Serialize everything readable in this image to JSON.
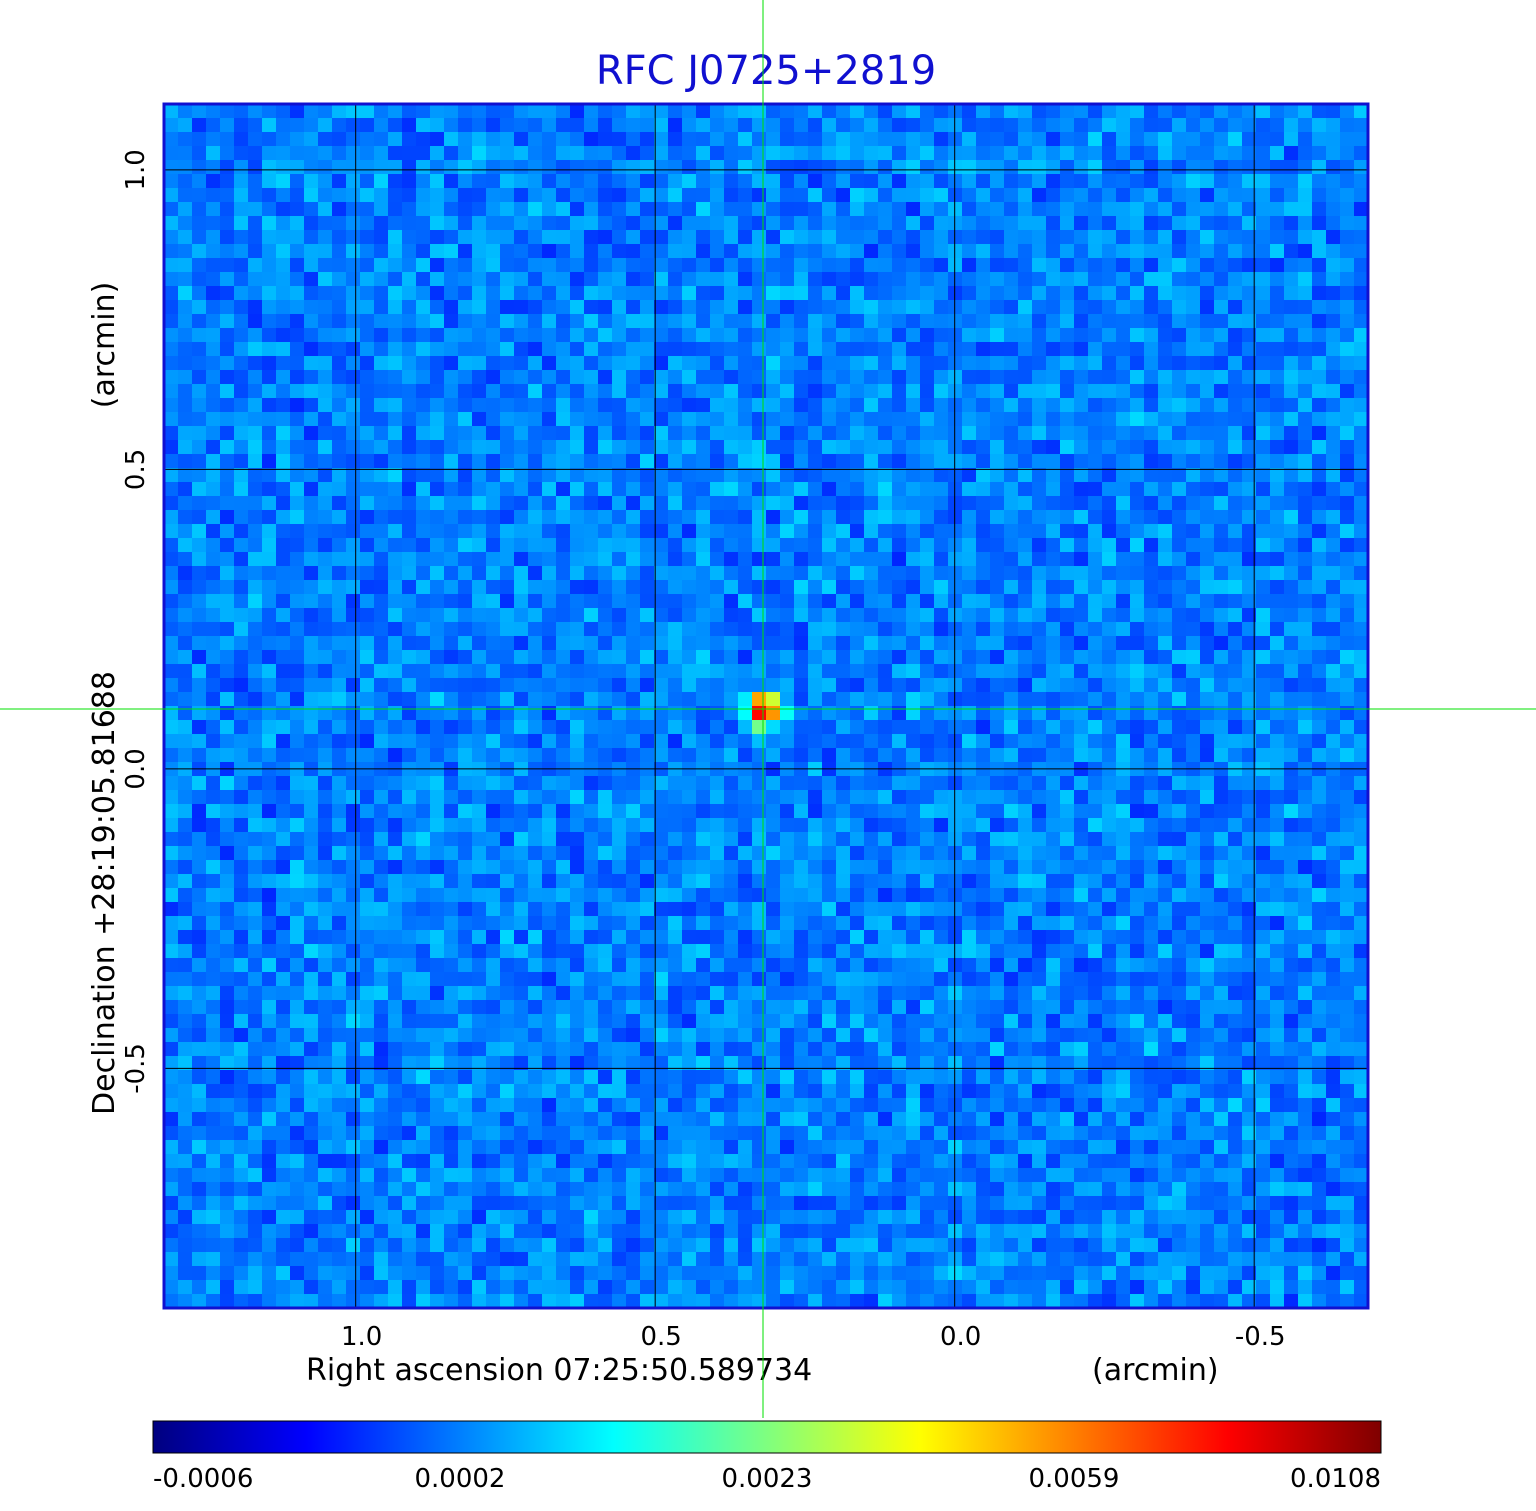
{
  "chart_data": {
    "type": "heatmap",
    "title": "RFC J0725+2819",
    "xlabel": "Right ascension  07:25:50.589734",
    "xunit": "(arcmin)",
    "ylabel": "Declination  +28:19:05.81688",
    "yunit": "(arcmin)",
    "x_ticks": [
      "1.0",
      "0.5",
      "0.0",
      "-0.5"
    ],
    "x_tick_values": [
      1.0,
      0.5,
      0.0,
      -0.5
    ],
    "y_ticks": [
      "1.0",
      "0.5",
      "0.0",
      "-0.5"
    ],
    "y_tick_values": [
      1.0,
      0.5,
      0.0,
      -0.5
    ],
    "xlim": [
      1.32,
      -0.69
    ],
    "ylim": [
      -0.9,
      1.11
    ],
    "grid": true,
    "source": {
      "x": 0.32,
      "y": 0.1,
      "peak_value": 0.0108
    },
    "colorbar": {
      "tick_labels": [
        "-0.0006",
        "0.0002",
        "0.0023",
        "0.0059",
        "0.0108"
      ],
      "min": -0.0006,
      "max": 0.0108,
      "colormap": [
        "#00007f",
        "#0000ff",
        "#007fff",
        "#00ffff",
        "#7fff7f",
        "#ffff00",
        "#ff7f00",
        "#ff0000",
        "#7f0000"
      ]
    },
    "colors": {
      "title": "#1010d0",
      "frame": "#1010d0",
      "grid": "#000000",
      "crosshair": "#00e000"
    }
  }
}
